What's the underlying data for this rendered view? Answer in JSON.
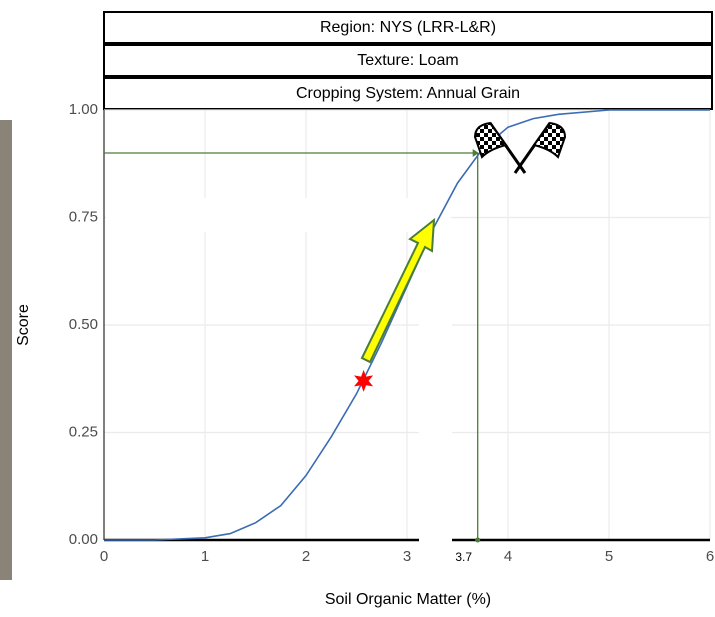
{
  "chart_data": {
    "type": "line",
    "strips": [
      "Region: NYS (LRR-L&R)",
      "Texture: Loam",
      "Cropping System: Annual Grain"
    ],
    "x_label": "Soil Organic Matter (%)",
    "y_label": "Score",
    "series": [
      {
        "color": "#3b6cb4",
        "x": [
          0,
          0.5,
          1,
          1.25,
          1.5,
          1.75,
          2,
          2.25,
          2.5,
          2.75,
          3,
          3.25,
          3.5,
          3.75,
          4,
          4.25,
          4.5,
          5,
          5.5,
          6
        ],
        "values": [
          0,
          0,
          0.005,
          0.015,
          0.04,
          0.08,
          0.15,
          0.24,
          0.34,
          0.46,
          0.59,
          0.72,
          0.83,
          0.91,
          0.96,
          0.98,
          0.99,
          1,
          1,
          1
        ]
      }
    ],
    "marker": {
      "x": 2.57,
      "y": 0.37,
      "color": "#ff0000"
    },
    "annotation": {
      "x": 3.7,
      "y": 0.9,
      "color": "#4a7c3a"
    },
    "xlim": [
      0,
      6
    ],
    "xticks": [
      0,
      1,
      2,
      3,
      4,
      5,
      6
    ],
    "ylim": [
      0,
      1
    ],
    "yticks": [
      {
        "value": 0,
        "label": "0.00"
      },
      {
        "value": 0.25,
        "label": "0.25"
      },
      {
        "value": 0.5,
        "label": "0.50"
      },
      {
        "value": 0.75,
        "label": "0.75"
      },
      {
        "value": 1,
        "label": "1.00"
      }
    ],
    "grid": true
  }
}
